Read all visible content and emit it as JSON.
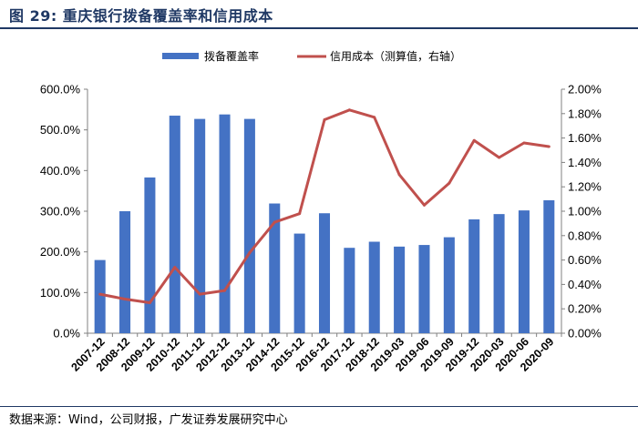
{
  "figure": {
    "title": "图 29: 重庆银行拨备覆盖率和信用成本",
    "source": "数据来源：Wind，公司财报，广发证券发展研究中心"
  },
  "colors": {
    "bar": "#4472c4",
    "line": "#c0504d",
    "title": "#1f3864"
  },
  "chart_data": {
    "type": "bar",
    "categories": [
      "2007-12",
      "2008-12",
      "2009-12",
      "2010-12",
      "2011-12",
      "2012-12",
      "2013-12",
      "2014-12",
      "2015-12",
      "2016-12",
      "2017-12",
      "2018-12",
      "2019-03",
      "2019-06",
      "2019-09",
      "2019-12",
      "2020-03",
      "2020-06",
      "2020-09"
    ],
    "series": [
      {
        "name": "拨备覆盖率",
        "type": "bar",
        "axis": "left",
        "values": [
          180,
          300,
          383,
          535,
          527,
          538,
          527,
          319,
          245,
          295,
          210,
          225,
          213,
          217,
          236,
          280,
          293,
          302,
          327
        ]
      },
      {
        "name": "信用成本（测算值，右轴）",
        "type": "line",
        "axis": "right",
        "values": [
          0.32,
          0.28,
          0.25,
          0.54,
          0.32,
          0.35,
          0.66,
          0.91,
          0.98,
          1.75,
          1.83,
          1.77,
          1.3,
          1.05,
          1.23,
          1.58,
          1.44,
          1.56,
          1.53
        ]
      }
    ],
    "y_left": {
      "min": 0,
      "max": 600,
      "step": 100,
      "tick_labels": [
        "0.0%",
        "100.0%",
        "200.0%",
        "300.0%",
        "400.0%",
        "500.0%",
        "600.0%"
      ]
    },
    "y_right": {
      "min": 0,
      "max": 2.0,
      "step": 0.2,
      "tick_labels": [
        "0.00%",
        "0.20%",
        "0.40%",
        "0.60%",
        "0.80%",
        "1.00%",
        "1.20%",
        "1.40%",
        "1.60%",
        "1.80%",
        "2.00%"
      ]
    },
    "grid": false,
    "legend_position": "top-center"
  }
}
